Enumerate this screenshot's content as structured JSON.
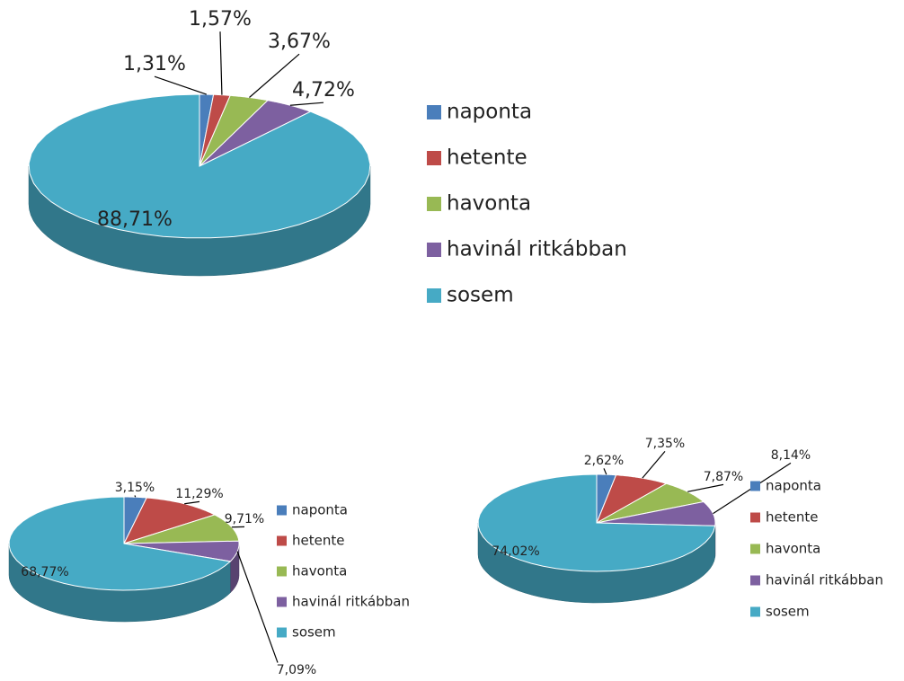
{
  "chart_data": [
    {
      "type": "pie",
      "categories": [
        "naponta",
        "hetente",
        "havonta",
        "havinál ritkábban",
        "sosem"
      ],
      "values": [
        1.31,
        1.57,
        3.67,
        4.72,
        88.71
      ],
      "value_labels": [
        "1,31%",
        "1,57%",
        "3,67%",
        "4,72%",
        "88,71%"
      ],
      "colors": [
        "#4a7ebb",
        "#be4b48",
        "#98b954",
        "#7d60a0",
        "#46aac5"
      ]
    },
    {
      "type": "pie",
      "categories": [
        "naponta",
        "hetente",
        "havonta",
        "havinál ritkábban",
        "sosem"
      ],
      "values": [
        3.15,
        11.29,
        9.71,
        7.09,
        68.77
      ],
      "value_labels": [
        "3,15%",
        "11,29%",
        "9,71%",
        "7,09%",
        "68,77%"
      ],
      "colors": [
        "#4a7ebb",
        "#be4b48",
        "#98b954",
        "#7d60a0",
        "#46aac5"
      ]
    },
    {
      "type": "pie",
      "categories": [
        "naponta",
        "hetente",
        "havonta",
        "havinál ritkábban",
        "sosem"
      ],
      "values": [
        2.62,
        7.35,
        7.87,
        8.14,
        74.02
      ],
      "value_labels": [
        "2,62%",
        "7,35%",
        "7,87%",
        "8,14%",
        "74,02%"
      ],
      "colors": [
        "#4a7ebb",
        "#be4b48",
        "#98b954",
        "#7d60a0",
        "#46aac5"
      ]
    }
  ]
}
